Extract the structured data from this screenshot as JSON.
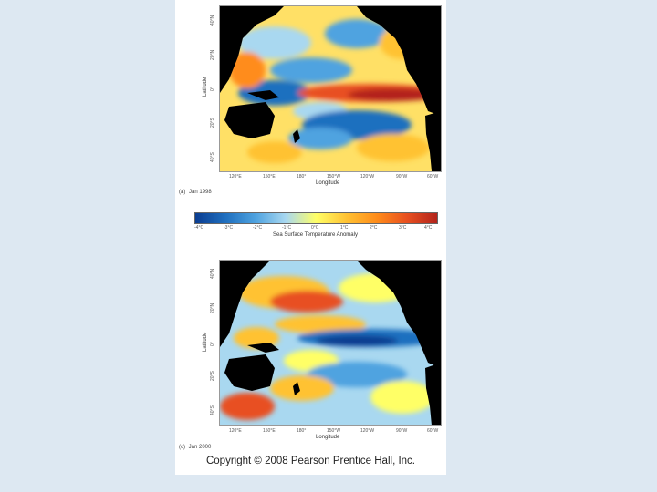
{
  "maps": [
    {
      "id": "a",
      "caption_letter": "(a)",
      "caption_date": "Jan 1998",
      "lat_ticks": [
        "40°N",
        "20°N",
        "0°",
        "20°S",
        "40°S"
      ],
      "lon_ticks": [
        "120°E",
        "150°E",
        "180°",
        "150°W",
        "120°W",
        "90°W",
        "60°W"
      ],
      "xlabel": "Longitude",
      "ylabel": "Latitude",
      "pattern": "el-nino"
    },
    {
      "id": "c",
      "caption_letter": "(c)",
      "caption_date": "Jan 2000",
      "lat_ticks": [
        "40°N",
        "20°N",
        "0°",
        "20°S",
        "40°S"
      ],
      "lon_ticks": [
        "120°E",
        "150°E",
        "180°",
        "150°W",
        "120°W",
        "90°W",
        "60°W"
      ],
      "xlabel": "Longitude",
      "ylabel": "Latitude",
      "pattern": "la-nina"
    }
  ],
  "colorbar": {
    "ticks": [
      "-4°C",
      "-3°C",
      "-2°C",
      "-1°C",
      "0°C",
      "1°C",
      "2°C",
      "3°C",
      "4°C"
    ],
    "title": "Sea Surface Temperature Anomaly",
    "colors": [
      "#0b3d91",
      "#1f6fbf",
      "#4fa3e0",
      "#a9d8f0",
      "#ffff66",
      "#ffc233",
      "#ff8c1a",
      "#e85020",
      "#b3241c"
    ]
  },
  "copyright": "Copyright © 2008 Pearson Prentice Hall, Inc."
}
